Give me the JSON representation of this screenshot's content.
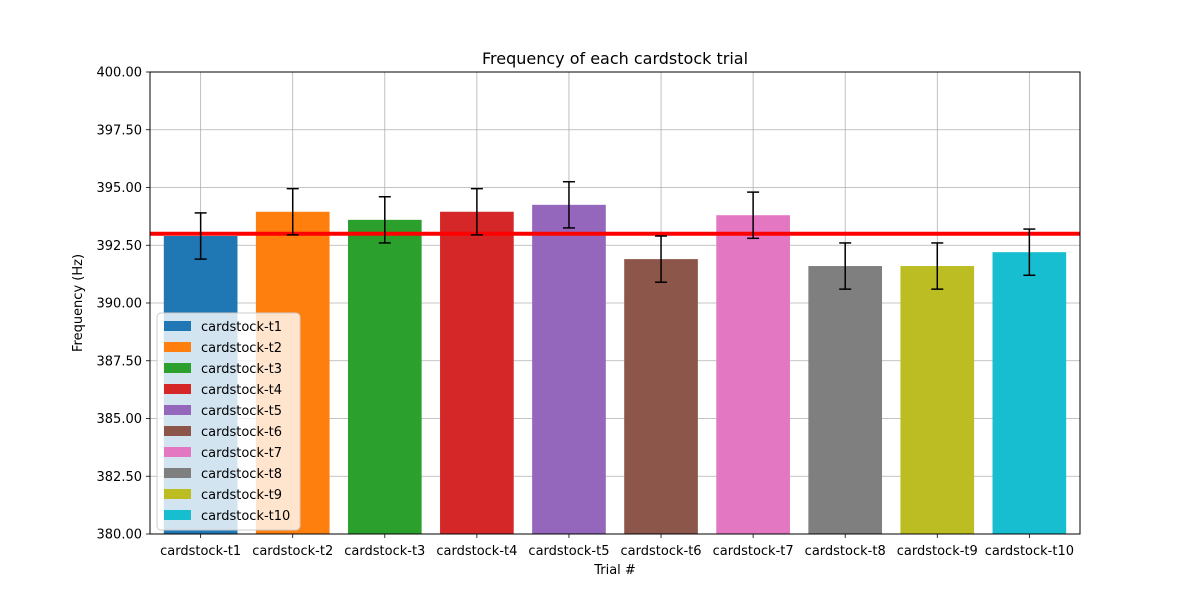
{
  "chart_data": {
    "type": "bar",
    "title": "Frequency of each cardstock trial",
    "xlabel": "Trial #",
    "ylabel": "Frequency (Hz)",
    "ylim": [
      380,
      400
    ],
    "yticks": [
      "380.00",
      "382.50",
      "385.00",
      "387.50",
      "390.00",
      "392.50",
      "395.00",
      "397.50",
      "400.00"
    ],
    "grid": true,
    "legend_position": "lower-left",
    "reference_line": {
      "value": 393.0,
      "color": "#ff0000"
    },
    "categories": [
      "cardstock-t1",
      "cardstock-t2",
      "cardstock-t3",
      "cardstock-t4",
      "cardstock-t5",
      "cardstock-t6",
      "cardstock-t7",
      "cardstock-t8",
      "cardstock-t9",
      "cardstock-t10"
    ],
    "series": [
      {
        "name": "cardstock-t1",
        "value": 392.9,
        "error": 1.0,
        "color": "#1f77b4"
      },
      {
        "name": "cardstock-t2",
        "value": 393.95,
        "error": 1.0,
        "color": "#ff7f0e"
      },
      {
        "name": "cardstock-t3",
        "value": 393.6,
        "error": 1.0,
        "color": "#2ca02c"
      },
      {
        "name": "cardstock-t4",
        "value": 393.95,
        "error": 1.0,
        "color": "#d62728"
      },
      {
        "name": "cardstock-t5",
        "value": 394.25,
        "error": 1.0,
        "color": "#9467bd"
      },
      {
        "name": "cardstock-t6",
        "value": 391.9,
        "error": 1.0,
        "color": "#8c564b"
      },
      {
        "name": "cardstock-t7",
        "value": 393.8,
        "error": 1.0,
        "color": "#e377c2"
      },
      {
        "name": "cardstock-t8",
        "value": 391.6,
        "error": 1.0,
        "color": "#7f7f7f"
      },
      {
        "name": "cardstock-t9",
        "value": 391.6,
        "error": 1.0,
        "color": "#bcbd22"
      },
      {
        "name": "cardstock-t10",
        "value": 392.2,
        "error": 1.0,
        "color": "#17becf"
      }
    ]
  }
}
